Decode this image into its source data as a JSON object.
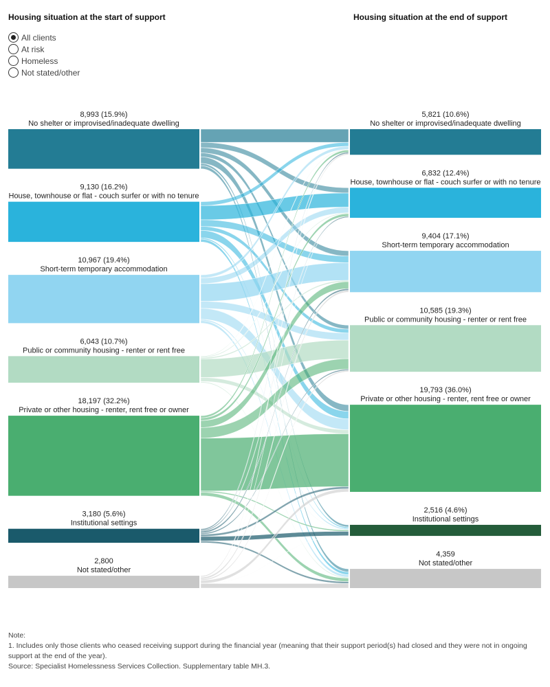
{
  "headings": {
    "left": "Housing situation at the start of support",
    "right": "Housing situation at the end of support"
  },
  "filter": {
    "options": [
      "All clients",
      "At risk",
      "Homeless",
      "Not stated/other"
    ],
    "selected": 0
  },
  "chart_data": {
    "type": "sankey",
    "start_nodes": [
      {
        "name": "No shelter or improvised/inadequate dwelling",
        "value": 8993,
        "label": "8,993 (15.9%)",
        "color": "#237c94"
      },
      {
        "name": "House, townhouse or flat - couch surfer or with no tenure",
        "value": 9130,
        "label": "9,130 (16.2%)",
        "color": "#2ab3dc"
      },
      {
        "name": "Short-term temporary accommodation",
        "value": 10967,
        "label": "10,967 (19.4%)",
        "color": "#91d5f1"
      },
      {
        "name": "Public or community housing - renter or rent free",
        "value": 6043,
        "label": "6,043 (10.7%)",
        "color": "#b2dbc3"
      },
      {
        "name": "Private or other housing - renter, rent free or owner",
        "value": 18197,
        "label": "18,197 (32.2%)",
        "color": "#4aae70"
      },
      {
        "name": "Institutional settings",
        "value": 3180,
        "label": "3,180 (5.6%)",
        "color": "#1a5a6b"
      },
      {
        "name": "Not stated/other",
        "value": 2800,
        "label": "2,800",
        "color": "#c7c7c7"
      }
    ],
    "end_nodes": [
      {
        "name": "No shelter or improvised/inadequate dwelling",
        "value": 5821,
        "label": "5,821 (10.6%)",
        "color": "#237c94"
      },
      {
        "name": "House, townhouse or flat - couch surfer or with no tenure",
        "value": 6832,
        "label": "6,832 (12.4%)",
        "color": "#2ab3dc"
      },
      {
        "name": "Short-term temporary accommodation",
        "value": 9404,
        "label": "9,404 (17.1%)",
        "color": "#91d5f1"
      },
      {
        "name": "Public or community housing - renter or rent free",
        "value": 10585,
        "label": "10,585 (19.3%)",
        "color": "#b2dbc3"
      },
      {
        "name": "Private or other housing - renter, rent free or owner",
        "value": 19793,
        "label": "19,793 (36.0%)",
        "color": "#4aae70"
      },
      {
        "name": "Institutional settings",
        "value": 2516,
        "label": "2,516 (4.6%)",
        "color": "#245c3a"
      },
      {
        "name": "Not stated/other",
        "value": 4359,
        "label": "4,359",
        "color": "#c7c7c7"
      }
    ],
    "flows": [
      [
        3000,
        1200,
        1200,
        900,
        1500,
        500,
        693
      ],
      [
        900,
        3200,
        1500,
        900,
        1700,
        300,
        630
      ],
      [
        700,
        1300,
        4000,
        1600,
        2500,
        300,
        567
      ],
      [
        150,
        200,
        300,
        4200,
        900,
        80,
        213
      ],
      [
        500,
        600,
        1600,
        2400,
        12000,
        300,
        797
      ],
      [
        300,
        250,
        400,
        300,
        500,
        1000,
        430
      ],
      [
        271,
        82,
        404,
        285,
        693,
        36,
        1029
      ]
    ]
  },
  "notes": {
    "heading": "Note:",
    "line1": "1.  Includes only those clients who ceased receiving support during the financial year (meaning that their support period(s) had closed and they were not in ongoing support at the end of the year).",
    "line2": "Source: Specialist Homelessness Services Collection. Supplementary table MH.3."
  }
}
